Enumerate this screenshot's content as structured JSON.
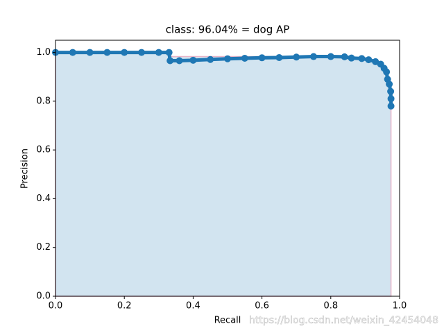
{
  "chart_data": {
    "type": "line",
    "title": "class: 96.04% = dog AP",
    "x_label": "Recall",
    "y_label": "Precision",
    "watermark": "https://blog.csdn.net/weixin_42454048",
    "xlim": [
      0,
      1.0
    ],
    "ylim": [
      0,
      1.05
    ],
    "xticks": [
      {
        "value": 0,
        "label": "0.0"
      },
      0.2,
      0.4,
      0.6,
      0.8,
      {
        "value": 1,
        "label": "1.0"
      }
    ],
    "yticks": [
      {
        "value": 0,
        "label": "0.0"
      },
      0.2,
      0.4,
      0.6,
      0.8,
      {
        "value": 1,
        "label": "1.0"
      }
    ],
    "area": {
      "color": "#1f77b4",
      "x": [
        0,
        0.33,
        0.33,
        0.84,
        0.84,
        0.89,
        0.91,
        0.93,
        0.945,
        0.955,
        0.962,
        0.965,
        0.97,
        0.974,
        0.975
      ],
      "values": [
        1,
        1,
        0.983,
        0.983,
        0.982,
        0.975,
        0.97,
        0.962,
        0.952,
        0.935,
        0.92,
        0.89,
        0.87,
        0.84,
        0.81
      ]
    },
    "series": [
      {
        "color": "#1f77b4",
        "x": [
          0,
          0.05,
          0.1,
          0.15,
          0.2,
          0.25,
          0.3,
          0.33,
          0.333,
          0.36,
          0.4,
          0.45,
          0.5,
          0.55,
          0.6,
          0.65,
          0.7,
          0.75,
          0.8,
          0.84,
          0.86,
          0.89,
          0.91,
          0.93,
          0.945,
          0.955,
          0.962,
          0.965,
          0.97,
          0.974,
          0.975,
          0.975
        ],
        "values": [
          1,
          1,
          1,
          1,
          1,
          1,
          1,
          1,
          0.966,
          0.966,
          0.968,
          0.971,
          0.974,
          0.976,
          0.978,
          0.979,
          0.981,
          0.983,
          0.983,
          0.982,
          0.977,
          0.975,
          0.97,
          0.962,
          0.952,
          0.935,
          0.92,
          0.89,
          0.87,
          0.84,
          0.81,
          0.78
        ]
      }
    ]
  }
}
